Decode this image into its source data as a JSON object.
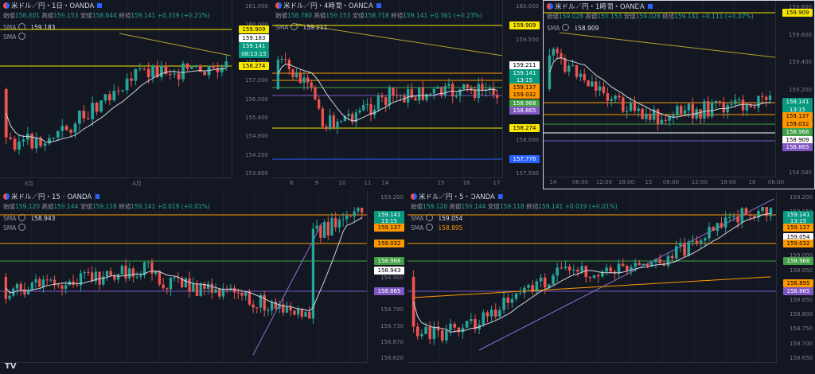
{
  "brand_logo": "TV",
  "colors": {
    "up": "#26a69a",
    "down": "#ef5350",
    "bg": "#131722",
    "grid": "#2a2e39",
    "yellow": "#f7e600",
    "orange": "#ff9800",
    "green": "#1e8c5a",
    "purple": "#7e57c2",
    "blue": "#2962ff",
    "white": "#ffffff",
    "sma_line": "#d1d4dc"
  },
  "panes": [
    {
      "id": "p1",
      "title": "米ドル／円・1日・OANDA",
      "ohlc": {
        "o_label": "始値",
        "o": "158.801",
        "h_label": "高値",
        "h": "159.153",
        "l_label": "安値",
        "l": "158.644",
        "c_label": "終値",
        "c": "159.141",
        "chg": "+0.339 (+0.21%)"
      },
      "sma_rows": [
        {
          "label": "SMA",
          "value": "159.183",
          "color": "white"
        },
        {
          "label": "SMA",
          "value": "",
          "color": "white"
        }
      ],
      "y_ticks": [
        "161.000",
        "160.000",
        "159.000",
        "158.000",
        "157.000",
        "156.000",
        "155.400",
        "154.800",
        "154.200",
        "153.600"
      ],
      "x_ticks": [
        "3月",
        "4月"
      ],
      "tags": [
        {
          "text": "159.909",
          "type": "yellow"
        },
        {
          "text": "159.183",
          "type": "white"
        },
        {
          "text": "159.141",
          "type": "green"
        },
        {
          "text": "08:13:15",
          "type": "green"
        },
        {
          "text": "158.274",
          "type": "yellow"
        }
      ]
    },
    {
      "id": "p2",
      "title": "米ドル／円・4時間・OANDA",
      "ohlc": {
        "o_label": "始値",
        "o": "158.780",
        "h_label": "高値",
        "h": "159.153",
        "l_label": "安値",
        "l": "158.718",
        "c_label": "終値",
        "c": "159.141",
        "chg": "+0.361 (+0.23%)"
      },
      "sma_rows": [
        {
          "label": "SMA",
          "value": "159.211",
          "color": "white"
        }
      ],
      "y_ticks": [
        "160.000",
        "159.500",
        "159.000",
        "158.500",
        "158.000",
        "157.500"
      ],
      "x_ticks": [
        "8",
        "9",
        "10",
        "11",
        "14",
        "15",
        "16",
        "17"
      ],
      "tags": [
        {
          "text": "159.909",
          "type": "yellow"
        },
        {
          "text": "159.211",
          "type": "white"
        },
        {
          "text": "159.141",
          "type": "green"
        },
        {
          "text": "13:15",
          "type": "green"
        },
        {
          "text": "159.137",
          "type": "orange"
        },
        {
          "text": "159.032",
          "type": "orange"
        },
        {
          "text": "158.968",
          "type": "green2"
        },
        {
          "text": "158.865",
          "type": "purple"
        },
        {
          "text": "158.274",
          "type": "yellow"
        },
        {
          "text": "157.776",
          "type": "blue"
        }
      ]
    },
    {
      "id": "p3",
      "title": "米ドル／円・1時間・OANDA",
      "ohlc": {
        "o_label": "始値",
        "o": "159.028",
        "h_label": "高値",
        "h": "159.153",
        "l_label": "安値",
        "l": "159.028",
        "c_label": "終値",
        "c": "159.141",
        "chg": "+0.111 (+0.07%)"
      },
      "sma_rows": [
        {
          "label": "SMA",
          "value": "158.909",
          "color": "white"
        }
      ],
      "y_ticks": [
        "159.800",
        "159.600",
        "159.400",
        "159.200",
        "159.000",
        "158.800",
        "158.580"
      ],
      "x_ticks": [
        "14",
        "06:00",
        "12:00",
        "18:00",
        "15",
        "06:00",
        "12:00",
        "18:00",
        "16",
        "06:00"
      ],
      "tags": [
        {
          "text": "159.909",
          "type": "yellow"
        },
        {
          "text": "159.141",
          "type": "green"
        },
        {
          "text": "13:15",
          "type": "green"
        },
        {
          "text": "159.137",
          "type": "orange"
        },
        {
          "text": "159.032",
          "type": "orange"
        },
        {
          "text": "158.968",
          "type": "green2"
        },
        {
          "text": "158.909",
          "type": "white"
        },
        {
          "text": "158.865",
          "type": "purple"
        }
      ]
    },
    {
      "id": "p4",
      "title": "米ドル／円・15・OANDA",
      "ohlc": {
        "o_label": "始値",
        "o": "159.120",
        "h_label": "高値",
        "h": "159.144",
        "l_label": "安値",
        "l": "159.118",
        "c_label": "終値",
        "c": "159.141",
        "chg": "+0.019 (+0.01%)"
      },
      "sma_rows": [
        {
          "label": "SMA",
          "value": "158.943",
          "color": "white"
        },
        {
          "label": "SMA",
          "value": "",
          "color": "white"
        }
      ],
      "y_ticks": [
        "159.200",
        "159.100",
        "159.055",
        "159.000",
        "158.970",
        "158.900",
        "158.850",
        "158.790",
        "158.730",
        "158.670",
        "158.620"
      ],
      "x_ticks": [],
      "tags": [
        {
          "text": "159.141",
          "type": "green"
        },
        {
          "text": "13:15",
          "type": "green"
        },
        {
          "text": "159.137",
          "type": "orange"
        },
        {
          "text": "159.032",
          "type": "orange"
        },
        {
          "text": "158.968",
          "type": "green2"
        },
        {
          "text": "158.943",
          "type": "white"
        },
        {
          "text": "158.865",
          "type": "purple"
        }
      ]
    },
    {
      "id": "p5",
      "title": "米ドル／円・5・OANDA",
      "ohlc": {
        "o_label": "始値",
        "o": "159.120",
        "h_label": "高値",
        "h": "159.144",
        "l_label": "安値",
        "l": "159.118",
        "c_label": "終値",
        "c": "159.141",
        "chg": "+0.019 (+0.01%)"
      },
      "sma_rows": [
        {
          "label": "SMA",
          "value": "159.054",
          "color": "white"
        },
        {
          "label": "SMA",
          "value": "158.895",
          "color": "orange"
        }
      ],
      "y_ticks": [
        "159.200",
        "159.150",
        "159.100",
        "159.050",
        "159.000",
        "158.950",
        "158.900",
        "158.850",
        "158.800",
        "158.750",
        "158.700",
        "158.650"
      ],
      "x_ticks": [],
      "tags": [
        {
          "text": "159.141",
          "type": "green"
        },
        {
          "text": "13:15",
          "type": "green"
        },
        {
          "text": "159.137",
          "type": "orange"
        },
        {
          "text": "159.054",
          "type": "white"
        },
        {
          "text": "159.032",
          "type": "orange"
        },
        {
          "text": "158.968",
          "type": "green2"
        },
        {
          "text": "158.895",
          "type": "orange"
        },
        {
          "text": "158.865",
          "type": "purple"
        }
      ]
    }
  ]
}
